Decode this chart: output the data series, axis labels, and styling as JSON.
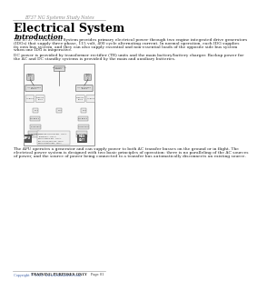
{
  "header_text": "B737 NG Systems Study Notes",
  "title": "Electrical System",
  "section_heading": "Introduction",
  "body_text_1": "The B737 NG Electrical System provides primary electrical power through two engine integrated drive generators\n(IDGs) that supply three-phase, 115 volt, 400 cycle alternating current. In normal operation, each IDG supplies\nits own bus system, and they can also supply essential and non-essential loads of the opposite side bus system\nwhen one IDG is inoperative.",
  "body_text_2": "DC power is provided by transformer rectifier (TR) units and the main battery/battery charger. Backup power for\nthe AC and DC standby systems is provided by the main and auxiliary batteries.",
  "body_text_3": "The APU operates a generator and can supply power to both AC transfer busses on the ground or in flight. The\nelectrical power system is designed with two basic principles of operation: there is no paralleling of the AC sources\nof power, and the source of power being connected to a transfer bus automatically disconnects an existing source.",
  "footer_left": "Copyright © 2023  www.airbusdriver.com",
  "footer_center": "TRAINING PURPOSES ONLY",
  "footer_right": "Page 81",
  "bg_color": "#ffffff",
  "title_color": "#000000",
  "header_color": "#888888",
  "body_color": "#222222",
  "line_color": "#aaaaaa",
  "diagram_bg": "#f5f5f5",
  "diagram_border": "#888888"
}
